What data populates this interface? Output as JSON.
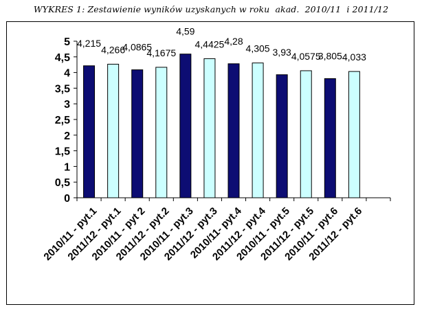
{
  "caption": "WYKRES 1: Zestawienie wyników uzyskanych w roku  akad.  2010/11  i 2011/12",
  "chart_data": {
    "type": "bar",
    "title": "WYKRES 1: Zestawienie wyników uzyskanych w roku  akad.  2010/11  i 2011/12",
    "categories": [
      "2010/11 - pyt.1",
      "2011/12 - pyt.1",
      "2010/11 - pyt 2",
      "2011/12 - pyt.2",
      "2010/11 -  pyt.3",
      "2011/12 - pyt.3",
      "2010/11- pyt.4",
      "2011/12 - pyt.4",
      "2010/11 - pyt.5",
      "2011/12 - pyt.5",
      "2010/11 - pyt.6",
      "2011/12 - pyt.6",
      ""
    ],
    "values": [
      4.215,
      4.266,
      4.0865,
      4.1675,
      4.59,
      4.4425,
      4.28,
      4.305,
      3.93,
      4.0575,
      3.805,
      4.033,
      null
    ],
    "data_labels": [
      "4,215",
      "4,266",
      "4,0865",
      "4,1675",
      "4,59",
      "4,4425",
      "4,28",
      "4,305",
      "3,93",
      "4,0575",
      "3,805",
      "4,033",
      ""
    ],
    "yticks": [
      "0",
      "0,5",
      "1",
      "1,5",
      "2",
      "2,5",
      "3",
      "3,5",
      "4",
      "4,5",
      "5"
    ],
    "ylim": [
      0,
      5
    ],
    "grid": false,
    "legend": "none",
    "colors": {
      "bar_2010_11": "#0d0d73",
      "bar_2011_12": "#ccffff",
      "bar_edge": "#000000",
      "axis": "#000000"
    }
  }
}
